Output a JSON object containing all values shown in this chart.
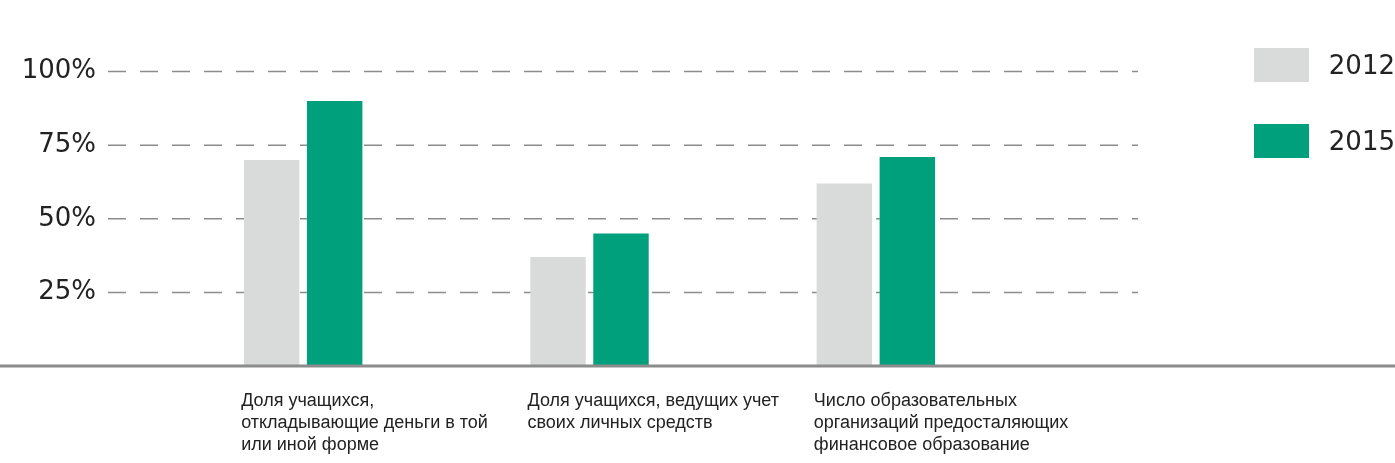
{
  "chart_data": {
    "type": "bar",
    "categories": [
      "Доля учащихся, откладывающие деньги в той или иной форме",
      "Доля учащихся, ведущих учет своих личных средств",
      "Число образовательных организаций предосталяющих финансовое образование"
    ],
    "series": [
      {
        "name": "2012",
        "color": "#d9dbda",
        "values": [
          70,
          37,
          62
        ]
      },
      {
        "name": "2015",
        "color": "#00a07d",
        "values": [
          90,
          45,
          71
        ]
      }
    ],
    "ylim": [
      0,
      100
    ],
    "yticks": [
      {
        "value": 25,
        "label": "25%"
      },
      {
        "value": 50,
        "label": "50%"
      },
      {
        "value": 75,
        "label": "75%"
      },
      {
        "value": 100,
        "label": "100%"
      }
    ],
    "grid": "y",
    "legend": "top right"
  }
}
